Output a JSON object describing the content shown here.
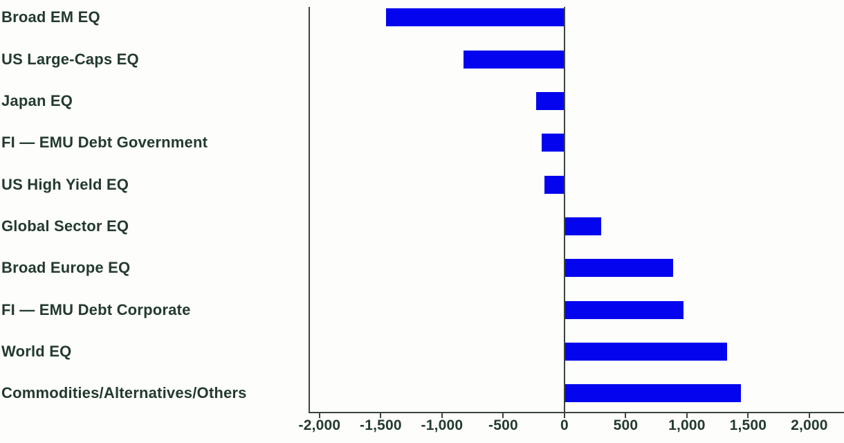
{
  "chart_data": {
    "type": "bar",
    "orientation": "horizontal",
    "categories": [
      "Broad EM EQ",
      "US Large-Caps EQ",
      "Japan EQ",
      "FI — EMU Debt Government",
      "US High Yield EQ",
      "Global Sector EQ",
      "Broad Europe EQ",
      "FI — EMU Debt Corporate",
      "World EQ",
      "Commodities/Alternatives/Others"
    ],
    "values": [
      -1460,
      -825,
      -230,
      -185,
      -165,
      300,
      890,
      975,
      1330,
      1440
    ],
    "x_ticks": [
      -2000,
      -1500,
      -1000,
      -500,
      0,
      500,
      1000,
      1500,
      2000
    ],
    "x_tick_labels": [
      "-2,000",
      "-1,500",
      "-1,000",
      "-500",
      "0",
      "500",
      "1,000",
      "1,500",
      "2,000"
    ],
    "xlim": [
      -2090,
      2283
    ],
    "legend": null,
    "grid": false,
    "colors": {
      "bar": "#0404ee",
      "text": "#233a30",
      "axis": "#3b443f"
    }
  }
}
